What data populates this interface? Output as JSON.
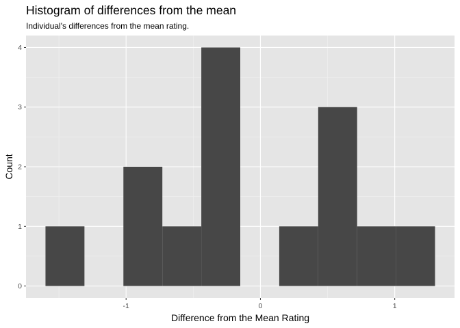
{
  "chart_data": {
    "type": "bar",
    "title": "Histogram of differences from the mean",
    "subtitle": "Individual's differences from the mean rating.",
    "xlabel": "Difference from the Mean Rating",
    "ylabel": "Count",
    "bins": [
      {
        "x0": -1.6,
        "x1": -1.31,
        "count": 1
      },
      {
        "x0": -1.31,
        "x1": -1.02,
        "count": 0
      },
      {
        "x0": -1.02,
        "x1": -0.73,
        "count": 2
      },
      {
        "x0": -0.73,
        "x1": -0.44,
        "count": 1
      },
      {
        "x0": -0.44,
        "x1": -0.15,
        "count": 4
      },
      {
        "x0": -0.15,
        "x1": 0.14,
        "count": 0
      },
      {
        "x0": 0.14,
        "x1": 0.43,
        "count": 1
      },
      {
        "x0": 0.43,
        "x1": 0.72,
        "count": 3
      },
      {
        "x0": 0.72,
        "x1": 1.01,
        "count": 1
      },
      {
        "x0": 1.01,
        "x1": 1.3,
        "count": 1
      }
    ],
    "xlim": [
      -1.745,
      1.445
    ],
    "ylim": [
      -0.2,
      4.2
    ],
    "xticks": [
      -1,
      0,
      1
    ],
    "xtick_labels": [
      "-1",
      "0",
      "1"
    ],
    "yticks": [
      0,
      1,
      2,
      3,
      4
    ],
    "ytick_labels": [
      "0",
      "1",
      "2",
      "3",
      "4"
    ],
    "grid": true,
    "bar_color": "#474747",
    "panel_background": "#E5E5E5"
  }
}
